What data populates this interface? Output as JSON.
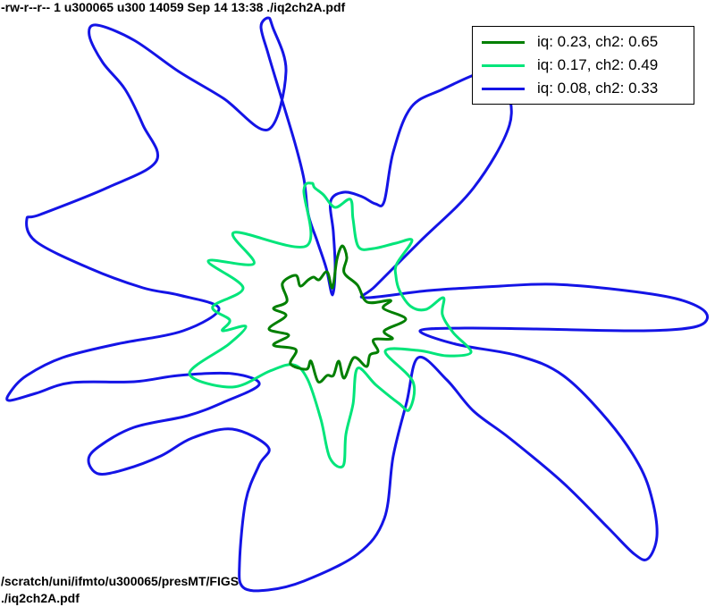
{
  "header": {
    "text": "-rw-r--r-- 1 u300065 u300 14059 Sep 14 13:38 ./iq2ch2A.pdf"
  },
  "footer": {
    "line1": "/scratch/uni/ifmto/u300065/presMT/FIGS",
    "line2": "./iq2ch2A.pdf"
  },
  "chart_data": {
    "type": "line",
    "subtype": "closed polar curves",
    "title": "",
    "xlabel": "",
    "ylabel": "",
    "axes_visible": false,
    "grid": false,
    "legend_placement": "top-right",
    "series": [
      {
        "name": "iq: 0.23, ch2: 0.65",
        "color": "#007f00",
        "points": [
          [
            388,
            288
          ],
          [
            383,
            275
          ],
          [
            377,
            290
          ],
          [
            372,
            322
          ],
          [
            366,
            304
          ],
          [
            357,
            313
          ],
          [
            351,
            310
          ],
          [
            345,
            313
          ],
          [
            336,
            320
          ],
          [
            331,
            308
          ],
          [
            316,
            317
          ],
          [
            321,
            337
          ],
          [
            306,
            345
          ],
          [
            320,
            353
          ],
          [
            301,
            368
          ],
          [
            323,
            375
          ],
          [
            306,
            386
          ],
          [
            331,
            391
          ],
          [
            325,
            407
          ],
          [
            343,
            413
          ],
          [
            348,
            404
          ],
          [
            356,
            427
          ],
          [
            366,
            420
          ],
          [
            373,
            420
          ],
          [
            379,
            404
          ],
          [
            385,
            423
          ],
          [
            396,
            400
          ],
          [
            410,
            410
          ],
          [
            414,
            397
          ],
          [
            423,
            393
          ],
          [
            418,
            380
          ],
          [
            439,
            379
          ],
          [
            430,
            370
          ],
          [
            454,
            357
          ],
          [
            429,
            345
          ],
          [
            437,
            336
          ],
          [
            411,
            338
          ],
          [
            400,
            319
          ],
          [
            385,
            305
          ]
        ]
      },
      {
        "name": "iq: 0.17, ch2: 0.49",
        "color": "#00e57a",
        "points": [
          [
            349,
            205
          ],
          [
            340,
            213
          ],
          [
            343,
            275
          ],
          [
            262,
            260
          ],
          [
            284,
            295
          ],
          [
            233,
            292
          ],
          [
            272,
            322
          ],
          [
            238,
            343
          ],
          [
            257,
            358
          ],
          [
            249,
            370
          ],
          [
            275,
            365
          ],
          [
            256,
            385
          ],
          [
            212,
            418
          ],
          [
            260,
            433
          ],
          [
            302,
            415
          ],
          [
            328,
            408
          ],
          [
            344,
            424
          ],
          [
            359,
            469
          ],
          [
            369,
            512
          ],
          [
            384,
            521
          ],
          [
            387,
            486
          ],
          [
            395,
            452
          ],
          [
            400,
            412
          ],
          [
            421,
            431
          ],
          [
            446,
            451
          ],
          [
            458,
            458
          ],
          [
            462,
            427
          ],
          [
            431,
            393
          ],
          [
            468,
            392
          ],
          [
            500,
            398
          ],
          [
            527,
            394
          ],
          [
            507,
            372
          ],
          [
            495,
            352
          ],
          [
            496,
            333
          ],
          [
            477,
            346
          ],
          [
            460,
            343
          ],
          [
            447,
            325
          ],
          [
            443,
            309
          ],
          [
            444,
            295
          ],
          [
            461,
            269
          ],
          [
            443,
            272
          ],
          [
            418,
            278
          ],
          [
            401,
            276
          ],
          [
            395,
            245
          ],
          [
            392,
            223
          ],
          [
            375,
            232
          ],
          [
            362,
            218
          ],
          [
            352,
            210
          ]
        ]
      },
      {
        "name": "iq: 0.08, ch2: 0.33",
        "color": "#1414e6",
        "points": [
          [
            300,
            20
          ],
          [
            292,
            30
          ],
          [
            300,
            60
          ],
          [
            315,
            110
          ],
          [
            330,
            160
          ],
          [
            340,
            200
          ],
          [
            345,
            240
          ],
          [
            355,
            270
          ],
          [
            365,
            300
          ],
          [
            372,
            330
          ],
          [
            375,
            300
          ],
          [
            373,
            260
          ],
          [
            370,
            225
          ],
          [
            385,
            215
          ],
          [
            405,
            220
          ],
          [
            420,
            228
          ],
          [
            430,
            225
          ],
          [
            440,
            170
          ],
          [
            460,
            120
          ],
          [
            495,
            100
          ],
          [
            545,
            80
          ],
          [
            565,
            95
          ],
          [
            570,
            140
          ],
          [
            530,
            210
          ],
          [
            470,
            270
          ],
          [
            420,
            320
          ],
          [
            408,
            333
          ],
          [
            480,
            325
          ],
          [
            560,
            320
          ],
          [
            620,
            318
          ],
          [
            700,
            325
          ],
          [
            760,
            335
          ],
          [
            790,
            350
          ],
          [
            780,
            365
          ],
          [
            720,
            370
          ],
          [
            600,
            368
          ],
          [
            520,
            367
          ],
          [
            470,
            370
          ],
          [
            510,
            385
          ],
          [
            580,
            398
          ],
          [
            630,
            420
          ],
          [
            680,
            470
          ],
          [
            715,
            520
          ],
          [
            730,
            560
          ],
          [
            735,
            600
          ],
          [
            725,
            625
          ],
          [
            710,
            620
          ],
          [
            680,
            590
          ],
          [
            630,
            540
          ],
          [
            570,
            490
          ],
          [
            530,
            460
          ],
          [
            500,
            425
          ],
          [
            468,
            400
          ],
          [
            455,
            450
          ],
          [
            440,
            510
          ],
          [
            430,
            580
          ],
          [
            400,
            620
          ],
          [
            340,
            650
          ],
          [
            300,
            660
          ],
          [
            272,
            657
          ],
          [
            268,
            630
          ],
          [
            275,
            560
          ],
          [
            290,
            520
          ],
          [
            300,
            500
          ],
          [
            260,
            480
          ],
          [
            215,
            490
          ],
          [
            180,
            510
          ],
          [
            140,
            525
          ],
          [
            110,
            530
          ],
          [
            99,
            515
          ],
          [
            110,
            500
          ],
          [
            150,
            478
          ],
          [
            210,
            465
          ],
          [
            250,
            450
          ],
          [
            290,
            430
          ],
          [
            260,
            418
          ],
          [
            200,
            420
          ],
          [
            150,
            427
          ],
          [
            80,
            428
          ],
          [
            40,
            440
          ],
          [
            10,
            448
          ],
          [
            12,
            438
          ],
          [
            30,
            420
          ],
          [
            70,
            400
          ],
          [
            130,
            385
          ],
          [
            205,
            370
          ],
          [
            245,
            345
          ],
          [
            200,
            330
          ],
          [
            160,
            322
          ],
          [
            100,
            300
          ],
          [
            40,
            270
          ],
          [
            30,
            245
          ],
          [
            45,
            240
          ],
          [
            120,
            210
          ],
          [
            175,
            180
          ],
          [
            160,
            140
          ],
          [
            140,
            100
          ],
          [
            115,
            70
          ],
          [
            100,
            40
          ],
          [
            108,
            28
          ],
          [
            150,
            45
          ],
          [
            200,
            80
          ],
          [
            250,
            110
          ],
          [
            300,
            145
          ],
          [
            320,
            80
          ],
          [
            305,
            30
          ]
        ]
      }
    ]
  }
}
